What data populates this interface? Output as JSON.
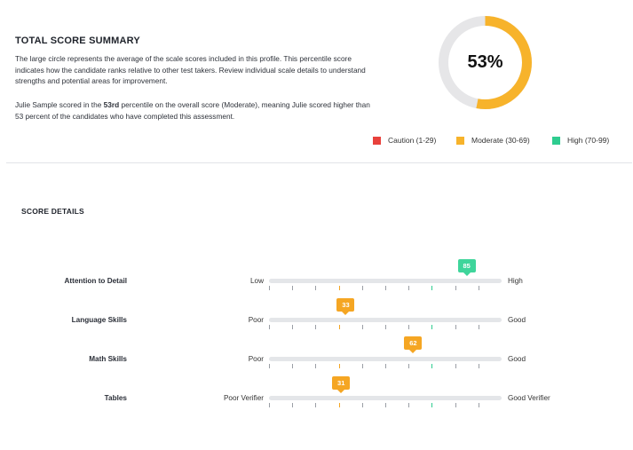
{
  "summary": {
    "title": "TOTAL SCORE SUMMARY",
    "para1": "The large circle represents the average of the scale scores included in this profile. This percentile score indicates how the candidate ranks relative to other test takers. Review individual scale details to understand strengths and potential areas for improvement.",
    "para2_pre": "Julie Sample scored in the ",
    "para2_bold": "53rd",
    "para2_post": " percentile on the overall score (Moderate), meaning Julie scored higher than 53 percent of the candidates who have completed this assessment."
  },
  "gauge": {
    "value": 53,
    "label": "53%",
    "color": "#f7b32b",
    "track_color": "#e6e6e8"
  },
  "legend": [
    {
      "label": "Caution (1-29)",
      "color": "#e8413c"
    },
    {
      "label": "Moderate (30-69)",
      "color": "#f7b32b"
    },
    {
      "label": "High (70-99)",
      "color": "#2ecc8f"
    }
  ],
  "details": {
    "title": "SCORE DETAILS",
    "rows": [
      {
        "label": "Attention to Detail",
        "low": "Low",
        "high": "High",
        "score": 85,
        "score_label": "85",
        "level": "high"
      },
      {
        "label": "Language Skills",
        "low": "Poor",
        "high": "Good",
        "score": 33,
        "score_label": "33",
        "level": "moderate"
      },
      {
        "label": "Math Skills",
        "low": "Poor",
        "high": "Good",
        "score": 62,
        "score_label": "62",
        "level": "moderate"
      },
      {
        "label": "Tables",
        "low": "Poor Verifier",
        "high": "Good Verifier",
        "score": 31,
        "score_label": "31",
        "level": "moderate"
      }
    ]
  }
}
